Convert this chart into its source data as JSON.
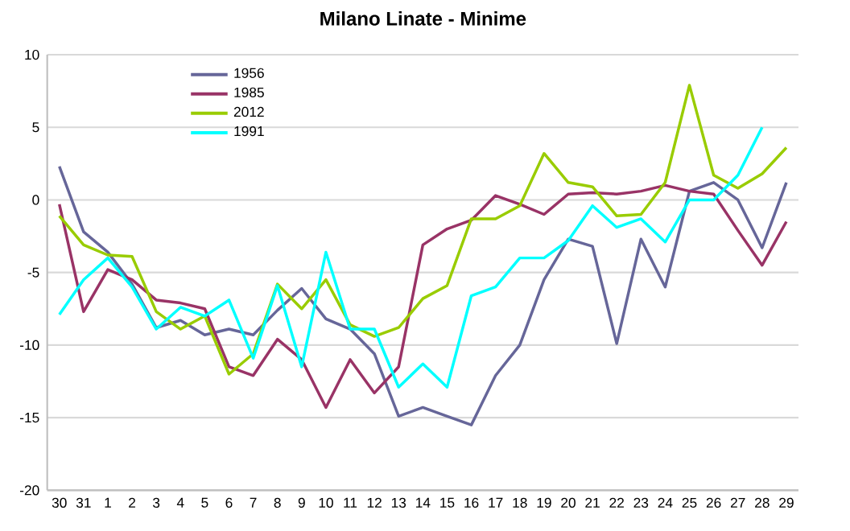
{
  "chart_data": {
    "type": "line",
    "title": "Milano Linate - Minime",
    "categories": [
      "30",
      "31",
      "1",
      "2",
      "3",
      "4",
      "5",
      "6",
      "7",
      "8",
      "9",
      "10",
      "11",
      "12",
      "13",
      "14",
      "15",
      "16",
      "17",
      "18",
      "19",
      "20",
      "21",
      "22",
      "23",
      "24",
      "25",
      "26",
      "27",
      "28",
      "29"
    ],
    "series": [
      {
        "name": "1956",
        "color": "#666699",
        "values": [
          2.3,
          -2.2,
          -3.6,
          -5.8,
          -8.8,
          -8.3,
          -9.3,
          -8.9,
          -9.3,
          -7.6,
          -6.1,
          -8.2,
          -8.9,
          -10.6,
          -14.9,
          -14.3,
          -14.9,
          -15.5,
          -12.1,
          -10,
          -5.5,
          -2.7,
          -3.2,
          -9.9,
          -2.7,
          -6,
          0.6,
          1.2,
          0,
          -3.3,
          1.2
        ]
      },
      {
        "name": "1985",
        "color": "#993366",
        "values": [
          -0.3,
          -7.7,
          -4.8,
          -5.5,
          -6.9,
          -7.1,
          -7.5,
          -11.5,
          -12.1,
          -9.6,
          -11,
          -14.3,
          -11,
          -13.3,
          -11.5,
          -3.1,
          -2,
          -1.4,
          0.3,
          -0.3,
          -1,
          0.4,
          0.5,
          0.4,
          0.6,
          1,
          0.6,
          0.4,
          -2.1,
          -4.5,
          -1.5
        ]
      },
      {
        "name": "2012",
        "color": "#99cc00",
        "values": [
          -1.1,
          -3.1,
          -3.8,
          -3.9,
          -7.7,
          -8.9,
          -8,
          -12,
          -10.6,
          -5.8,
          -7.5,
          -5.5,
          -8.6,
          -9.4,
          -8.8,
          -6.8,
          -5.9,
          -1.3,
          -1.3,
          -0.4,
          3.2,
          1.2,
          0.9,
          -1.1,
          -1,
          1.2,
          7.9,
          1.7,
          0.8,
          1.8,
          3.6
        ]
      },
      {
        "name": "1991",
        "color": "#00ffff",
        "values": [
          -7.9,
          -5.5,
          -4,
          -6,
          -8.9,
          -7.4,
          -8,
          -6.9,
          -10.9,
          -5.9,
          -11.5,
          -3.6,
          -8.9,
          -8.9,
          -12.9,
          -11.3,
          -12.9,
          -6.6,
          -6,
          -4,
          -4,
          -2.8,
          -0.4,
          -1.9,
          -1.3,
          -2.9,
          0,
          0,
          1.7,
          5,
          null
        ]
      }
    ],
    "ylim": [
      -20,
      10
    ],
    "yticks": [
      -20,
      -15,
      -10,
      -5,
      0,
      5,
      10
    ],
    "grid": "y",
    "legend": "top left",
    "marker": "none",
    "line_style": "solid"
  }
}
